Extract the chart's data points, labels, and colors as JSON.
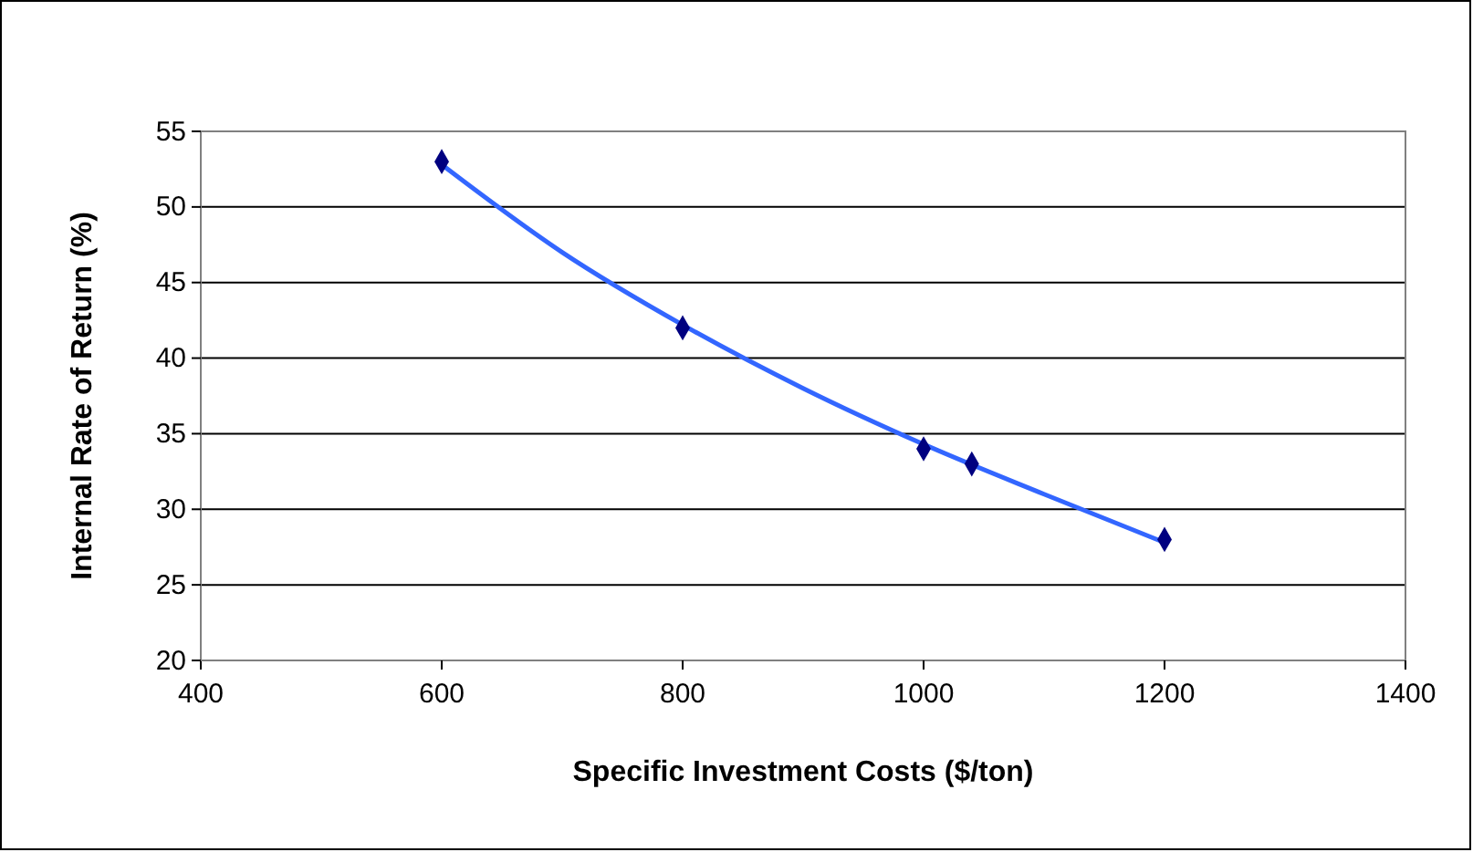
{
  "chart_data": {
    "type": "scatter",
    "xlabel": "Specific Investment Costs ($/ton)",
    "ylabel": "Internal Rate of Return (%)",
    "xlim": [
      400,
      1400
    ],
    "xticks": [
      400,
      600,
      800,
      1000,
      1200,
      1400
    ],
    "ylim": [
      20,
      55
    ],
    "yticks": [
      20,
      25,
      30,
      35,
      40,
      45,
      50,
      55
    ],
    "grid": "y",
    "series": [
      {
        "type": "line",
        "color": "#3366ff",
        "x": [
          600,
          700,
          800,
          900,
          1000,
          1100,
          1200
        ],
        "values": [
          52.8,
          47,
          42.2,
          38,
          34.3,
          31,
          27.8
        ]
      },
      {
        "marker": "diamond",
        "color": "#000080",
        "x": [
          600,
          800,
          1000,
          1040,
          1200
        ],
        "values": [
          53,
          42,
          34,
          33,
          28
        ]
      }
    ]
  }
}
